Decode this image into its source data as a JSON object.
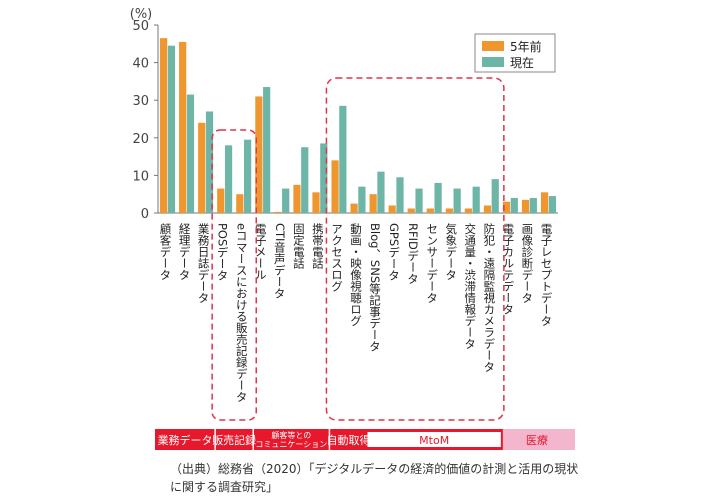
{
  "chart_data": {
    "type": "bar",
    "unit": "(%)",
    "ylim": [
      0,
      50
    ],
    "yticks": [
      0,
      10,
      20,
      30,
      40,
      50
    ],
    "grid": false,
    "legend_position": "top-right",
    "categories": [
      "顧客データ",
      "経理データ",
      "業務日誌データ",
      "POSデータ",
      "eコマースにおける販売記録データ",
      "電子メール",
      "CTI音声データ",
      "固定電話",
      "携帯電話",
      "アクセスログ",
      "動画・映像視聴ログ",
      "Blog、SNS等記事データ",
      "GPSデータ",
      "RFIDデータ",
      "センサーデータ",
      "気象データ",
      "交通量・渋滞情報データ",
      "防犯・遠隔監視カメラデータ",
      "電子カルテデータ",
      "画像診断データ",
      "電子レセプトデータ"
    ],
    "series": [
      {
        "name": "5年前",
        "color": "#f0962e",
        "values": [
          46.5,
          45.5,
          24,
          6.5,
          5,
          31,
          0.3,
          7.5,
          5.5,
          14,
          2.5,
          5,
          2,
          1.2,
          1.2,
          1.2,
          1.2,
          2,
          3,
          3.5,
          5.5
        ]
      },
      {
        "name": "現在",
        "color": "#6db5a6",
        "values": [
          44.5,
          31.5,
          27,
          18,
          19.5,
          33.5,
          6.5,
          17.5,
          18.5,
          28.5,
          7,
          11,
          9.5,
          6.5,
          8,
          6.5,
          7,
          9,
          4,
          4,
          4.5
        ]
      }
    ]
  },
  "groups": [
    {
      "label": "業務データ",
      "from": 0,
      "to": 2,
      "style": "solid"
    },
    {
      "label": "販売記録",
      "from": 3,
      "to": 4,
      "style": "solid"
    },
    {
      "label": "顧客等との\nコミュニケーション",
      "from": 5,
      "to": 8,
      "style": "solid"
    },
    {
      "label": "自動取得",
      "from": 9,
      "to": 17,
      "style": "solid",
      "sub_label": "MtoM",
      "sub_from": 11,
      "sub_to": 17
    },
    {
      "label": "医療",
      "from": 18,
      "to": 20,
      "style": "pink"
    }
  ],
  "source_text": "（出典）総務省（2020）「デジタルデータの経済的価値の計測と活用の現状に関する調査研究」"
}
